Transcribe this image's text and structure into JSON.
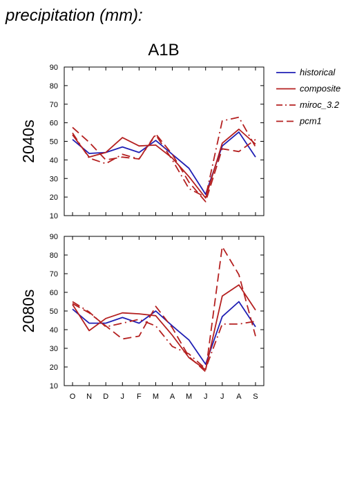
{
  "header": {
    "title": "precipitation (mm):",
    "scenario": "A1B"
  },
  "colors": {
    "historical": "#1f1fb4",
    "composite": "#b41f1f",
    "miroc_3.2": "#b41f1f",
    "pcm1": "#b41f1f",
    "axis": "#000000"
  },
  "chart_data": [
    {
      "type": "line",
      "title": "2040s",
      "ylabel": "2040s",
      "ylim": [
        10,
        90
      ],
      "yticks": [
        "10",
        "20",
        "30",
        "40",
        "50",
        "60",
        "70",
        "80",
        "90"
      ],
      "categories": [
        "O",
        "N",
        "D",
        "J",
        "F",
        "M",
        "A",
        "M",
        "J",
        "J",
        "A",
        "S"
      ],
      "legend": "right",
      "series": [
        {
          "name": "historical",
          "style": "solid",
          "color": "#1f1fb4",
          "values": [
            51,
            43.5,
            44,
            47,
            44,
            50.5,
            43,
            35.5,
            21.5,
            47.5,
            55,
            41.5
          ]
        },
        {
          "name": "composite",
          "style": "solid",
          "color": "#b41f1f",
          "values": [
            53.5,
            41.5,
            44,
            52,
            47.5,
            48,
            41,
            31,
            19.5,
            49,
            56.5,
            48.5
          ]
        },
        {
          "name": "miroc_3.2",
          "style": "dashdot",
          "color": "#b41f1f",
          "values": [
            54.5,
            41,
            38,
            43,
            40.5,
            53.5,
            40,
            24.5,
            20,
            61,
            63,
            47
          ]
        },
        {
          "name": "pcm1",
          "style": "dashed",
          "color": "#b41f1f",
          "values": [
            57.5,
            49.5,
            40,
            41.5,
            40.5,
            54,
            43,
            28,
            17.5,
            46,
            44.5,
            51
          ]
        }
      ]
    },
    {
      "type": "line",
      "title": "2080s",
      "ylabel": "2080s",
      "ylim": [
        10,
        90
      ],
      "yticks": [
        "10",
        "20",
        "30",
        "40",
        "50",
        "60",
        "70",
        "80",
        "90"
      ],
      "categories": [
        "O",
        "N",
        "D",
        "J",
        "F",
        "M",
        "A",
        "M",
        "J",
        "J",
        "A",
        "S"
      ],
      "legend": "none",
      "series": [
        {
          "name": "historical",
          "style": "solid",
          "color": "#1f1fb4",
          "values": [
            51,
            43.5,
            43.5,
            46.5,
            43.5,
            50,
            42,
            34.5,
            21.5,
            47,
            55,
            41.5
          ]
        },
        {
          "name": "composite",
          "style": "solid",
          "color": "#b41f1f",
          "values": [
            53.5,
            39.5,
            46,
            49,
            48.5,
            47.5,
            37,
            25,
            18.5,
            58,
            64,
            50.5
          ]
        },
        {
          "name": "miroc_3.2",
          "style": "dashdot",
          "color": "#b41f1f",
          "values": [
            55,
            49.5,
            41.5,
            43.5,
            45.5,
            42,
            31,
            27,
            19,
            43,
            43,
            44.5
          ]
        },
        {
          "name": "pcm1",
          "style": "dashed",
          "color": "#b41f1f",
          "values": [
            54,
            49,
            42,
            35,
            36.5,
            52.5,
            41,
            25.5,
            17.5,
            84.5,
            69.5,
            36.5
          ]
        }
      ]
    }
  ]
}
